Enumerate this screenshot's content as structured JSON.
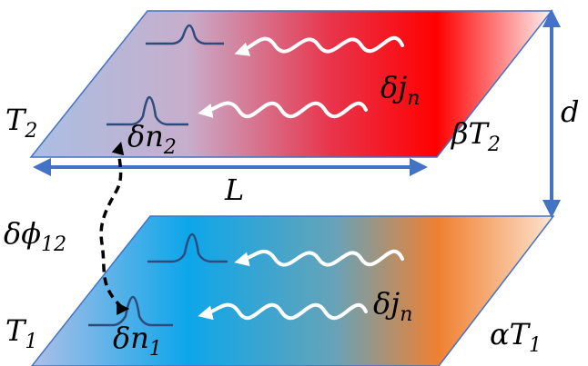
{
  "colors": {
    "plate_edge": "#4472c4",
    "arrow_blue": "#4472c4",
    "pulse_stroke": "#2f4b7c",
    "wave_stroke": "#ffffff",
    "dash_arrow": "#000000",
    "top_plate_gradient": [
      "#a9bfe3",
      "#c7aecc",
      "#e8334a",
      "#ff0000",
      "#fff0f0"
    ],
    "bottom_plate_gradient": [
      "#aebfe6",
      "#0da6ea",
      "#66a3b8",
      "#f08030",
      "#fde3d0"
    ]
  },
  "top_plate": {
    "left_temperature": {
      "main": "T",
      "sub": "2"
    },
    "right_temperature": {
      "prefix": "β",
      "main": "T",
      "sub": "2"
    },
    "density_label": {
      "prefix": "δ",
      "main": "n",
      "sub": "2"
    },
    "current_label": {
      "prefix": "δ",
      "main": "j",
      "sub": "n"
    }
  },
  "bottom_plate": {
    "left_temperature": {
      "main": "T",
      "sub": "1"
    },
    "right_temperature": {
      "prefix": "α",
      "main": "T",
      "sub": "1"
    },
    "density_label": {
      "prefix": "δ",
      "main": "n",
      "sub": "1"
    },
    "current_label": {
      "prefix": "δ",
      "main": "j",
      "sub": "n"
    }
  },
  "phase_label": {
    "prefix": "δ",
    "main": "ϕ",
    "sub": "12"
  },
  "length_label": "L",
  "separation_label": "d",
  "icons": [
    "double-arrow-icon",
    "dashed-curved-arrow-icon",
    "wavy-arrow-icon",
    "peak-icon"
  ]
}
